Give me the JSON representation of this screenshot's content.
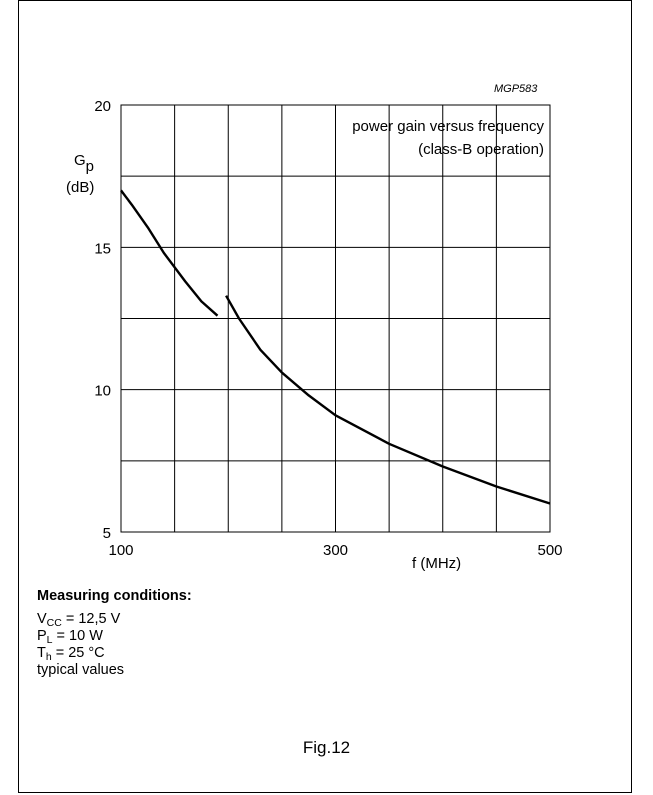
{
  "chart_data": {
    "type": "line",
    "figure_code": "MGP583",
    "title_line1": "power gain versus frequency",
    "title_line2": "(class-B operation)",
    "ylabel_main": "G",
    "ylabel_sub": "p",
    "ylabel_unit": "(dB)",
    "xlabel": "f (MHz)",
    "xlim": [
      100,
      500
    ],
    "ylim": [
      5,
      20
    ],
    "x_ticks": [
      {
        "value": 100,
        "label": "100"
      },
      {
        "value": 300,
        "label": "300"
      },
      {
        "value": 500,
        "label": "500"
      }
    ],
    "y_ticks": [
      {
        "value": 5,
        "label": "5"
      },
      {
        "value": 10,
        "label": "10"
      },
      {
        "value": 15,
        "label": "15"
      },
      {
        "value": 20,
        "label": "20"
      }
    ],
    "x_grid": [
      100,
      150,
      200,
      250,
      300,
      350,
      400,
      450,
      500
    ],
    "y_grid": [
      5,
      7.5,
      10,
      12.5,
      15,
      17.5,
      20
    ],
    "grid": true,
    "series": [
      {
        "segments": [
          [
            [
              100,
              17.0
            ],
            [
              110,
              16.5
            ],
            [
              125,
              15.7
            ],
            [
              140,
              14.8
            ],
            [
              160,
              13.8
            ],
            [
              175,
              13.1
            ],
            [
              190,
              12.6
            ]
          ],
          [
            [
              198,
              13.3
            ],
            [
              210,
              12.5
            ],
            [
              230,
              11.4
            ],
            [
              250,
              10.6
            ],
            [
              275,
              9.8
            ],
            [
              300,
              9.1
            ],
            [
              350,
              8.1
            ],
            [
              400,
              7.3
            ],
            [
              450,
              6.6
            ],
            [
              500,
              6.0
            ]
          ]
        ]
      }
    ]
  },
  "conditions": {
    "heading": "Measuring conditions:",
    "vcc_label": "V",
    "vcc_sub": "CC",
    "vcc_value": " = 12,5 V",
    "pl_label": "P",
    "pl_sub": "L",
    "pl_value": " = 10 W",
    "th_label": "T",
    "th_sub": "h",
    "th_value": " = 25 °C",
    "note": "typical values"
  },
  "figure_caption": "Fig.12"
}
